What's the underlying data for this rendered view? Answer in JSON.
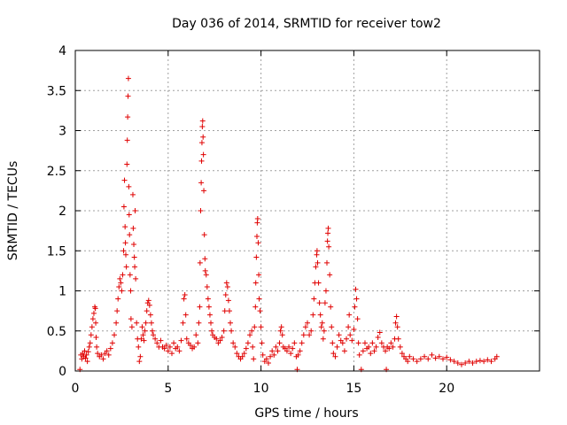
{
  "chart_data": {
    "type": "scatter",
    "title": "Day 036 of 2014, SRMTID for receiver tow2",
    "xlabel": "GPS time / hours",
    "ylabel": "SRMTID / TECUs",
    "xlim": [
      0,
      25
    ],
    "ylim": [
      0,
      4
    ],
    "xticks": [
      0,
      5,
      10,
      15,
      20
    ],
    "xtick_labels": [
      "0",
      "5",
      "10",
      "15",
      "20"
    ],
    "yticks": [
      0,
      0.5,
      1,
      1.5,
      2,
      2.5,
      3,
      3.5,
      4
    ],
    "ytick_labels": [
      "0",
      "0.5",
      "1",
      "1.5",
      "2",
      "2.5",
      "3",
      "3.5",
      "4"
    ],
    "grid": true,
    "marker": "+",
    "color": "#e00000",
    "series": [
      {
        "name": "tow2",
        "points": [
          [
            0.25,
            0.02
          ],
          [
            0.3,
            0.2
          ],
          [
            0.35,
            0.15
          ],
          [
            0.4,
            0.22
          ],
          [
            0.45,
            0.18
          ],
          [
            0.5,
            0.25
          ],
          [
            0.55,
            0.16
          ],
          [
            0.6,
            0.2
          ],
          [
            0.65,
            0.12
          ],
          [
            0.7,
            0.24
          ],
          [
            0.75,
            0.3
          ],
          [
            0.8,
            0.35
          ],
          [
            0.85,
            0.45
          ],
          [
            0.9,
            0.55
          ],
          [
            0.95,
            0.65
          ],
          [
            1.0,
            0.72
          ],
          [
            1.05,
            0.8
          ],
          [
            1.08,
            0.78
          ],
          [
            1.1,
            0.6
          ],
          [
            1.12,
            0.42
          ],
          [
            1.15,
            0.3
          ],
          [
            1.2,
            0.22
          ],
          [
            1.3,
            0.18
          ],
          [
            1.4,
            0.2
          ],
          [
            1.5,
            0.15
          ],
          [
            1.6,
            0.22
          ],
          [
            1.7,
            0.25
          ],
          [
            1.8,
            0.2
          ],
          [
            1.9,
            0.28
          ],
          [
            2.0,
            0.35
          ],
          [
            2.1,
            0.45
          ],
          [
            2.2,
            0.6
          ],
          [
            2.25,
            0.75
          ],
          [
            2.3,
            0.9
          ],
          [
            2.35,
            1.05
          ],
          [
            2.4,
            1.15
          ],
          [
            2.45,
            1.1
          ],
          [
            2.5,
            1.0
          ],
          [
            2.55,
            1.2
          ],
          [
            2.6,
            1.5
          ],
          [
            2.62,
            2.05
          ],
          [
            2.65,
            2.38
          ],
          [
            2.68,
            1.8
          ],
          [
            2.7,
            1.6
          ],
          [
            2.72,
            1.45
          ],
          [
            2.75,
            1.3
          ],
          [
            2.78,
            2.58
          ],
          [
            2.8,
            2.88
          ],
          [
            2.82,
            3.17
          ],
          [
            2.84,
            3.43
          ],
          [
            2.86,
            3.65
          ],
          [
            2.88,
            2.3
          ],
          [
            2.9,
            1.95
          ],
          [
            2.92,
            1.7
          ],
          [
            2.95,
            1.2
          ],
          [
            2.98,
            1.0
          ],
          [
            3.0,
            0.65
          ],
          [
            3.05,
            0.55
          ],
          [
            3.1,
            2.2
          ],
          [
            3.12,
            1.78
          ],
          [
            3.15,
            1.58
          ],
          [
            3.18,
            1.42
          ],
          [
            3.2,
            1.3
          ],
          [
            3.22,
            2.0
          ],
          [
            3.25,
            1.15
          ],
          [
            3.3,
            0.6
          ],
          [
            3.35,
            0.4
          ],
          [
            3.4,
            0.3
          ],
          [
            3.45,
            0.12
          ],
          [
            3.5,
            0.18
          ],
          [
            3.55,
            0.4
          ],
          [
            3.6,
            0.55
          ],
          [
            3.65,
            0.45
          ],
          [
            3.7,
            0.38
          ],
          [
            3.75,
            0.5
          ],
          [
            3.8,
            0.6
          ],
          [
            3.85,
            0.75
          ],
          [
            3.9,
            0.85
          ],
          [
            3.95,
            0.88
          ],
          [
            4.0,
            0.82
          ],
          [
            4.05,
            0.7
          ],
          [
            4.1,
            0.6
          ],
          [
            4.15,
            0.5
          ],
          [
            4.2,
            0.45
          ],
          [
            4.3,
            0.4
          ],
          [
            4.4,
            0.35
          ],
          [
            4.5,
            0.3
          ],
          [
            4.6,
            0.38
          ],
          [
            4.7,
            0.3
          ],
          [
            4.8,
            0.28
          ],
          [
            4.9,
            0.32
          ],
          [
            5.0,
            0.25
          ],
          [
            5.1,
            0.3
          ],
          [
            5.2,
            0.22
          ],
          [
            5.3,
            0.35
          ],
          [
            5.4,
            0.28
          ],
          [
            5.5,
            0.3
          ],
          [
            5.6,
            0.25
          ],
          [
            5.7,
            0.38
          ],
          [
            5.8,
            0.6
          ],
          [
            5.85,
            0.9
          ],
          [
            5.9,
            0.95
          ],
          [
            5.95,
            0.7
          ],
          [
            6.0,
            0.4
          ],
          [
            6.1,
            0.35
          ],
          [
            6.2,
            0.32
          ],
          [
            6.3,
            0.28
          ],
          [
            6.4,
            0.3
          ],
          [
            6.5,
            0.45
          ],
          [
            6.6,
            0.35
          ],
          [
            6.65,
            0.6
          ],
          [
            6.7,
            0.8
          ],
          [
            6.72,
            1.35
          ],
          [
            6.75,
            2.0
          ],
          [
            6.78,
            2.35
          ],
          [
            6.8,
            2.62
          ],
          [
            6.82,
            2.85
          ],
          [
            6.84,
            3.05
          ],
          [
            6.86,
            3.12
          ],
          [
            6.88,
            2.92
          ],
          [
            6.9,
            2.7
          ],
          [
            6.92,
            2.25
          ],
          [
            6.95,
            1.7
          ],
          [
            6.98,
            1.4
          ],
          [
            7.0,
            1.25
          ],
          [
            7.05,
            1.2
          ],
          [
            7.1,
            1.05
          ],
          [
            7.15,
            0.9
          ],
          [
            7.2,
            0.8
          ],
          [
            7.25,
            0.7
          ],
          [
            7.3,
            0.6
          ],
          [
            7.35,
            0.5
          ],
          [
            7.4,
            0.45
          ],
          [
            7.5,
            0.42
          ],
          [
            7.6,
            0.4
          ],
          [
            7.7,
            0.35
          ],
          [
            7.8,
            0.38
          ],
          [
            7.9,
            0.42
          ],
          [
            8.0,
            0.5
          ],
          [
            8.05,
            0.75
          ],
          [
            8.1,
            0.95
          ],
          [
            8.15,
            1.1
          ],
          [
            8.2,
            1.05
          ],
          [
            8.25,
            0.88
          ],
          [
            8.3,
            0.75
          ],
          [
            8.35,
            0.6
          ],
          [
            8.4,
            0.5
          ],
          [
            8.5,
            0.35
          ],
          [
            8.6,
            0.3
          ],
          [
            8.7,
            0.22
          ],
          [
            8.8,
            0.18
          ],
          [
            8.9,
            0.15
          ],
          [
            9.0,
            0.18
          ],
          [
            9.1,
            0.22
          ],
          [
            9.2,
            0.28
          ],
          [
            9.3,
            0.35
          ],
          [
            9.4,
            0.45
          ],
          [
            9.5,
            0.5
          ],
          [
            9.55,
            0.3
          ],
          [
            9.6,
            0.15
          ],
          [
            9.65,
            0.55
          ],
          [
            9.7,
            0.8
          ],
          [
            9.72,
            1.1
          ],
          [
            9.75,
            1.42
          ],
          [
            9.78,
            1.68
          ],
          [
            9.8,
            1.85
          ],
          [
            9.82,
            1.9
          ],
          [
            9.85,
            1.6
          ],
          [
            9.88,
            1.2
          ],
          [
            9.9,
            0.9
          ],
          [
            9.95,
            0.75
          ],
          [
            10.0,
            0.55
          ],
          [
            10.05,
            0.35
          ],
          [
            10.1,
            0.2
          ],
          [
            10.2,
            0.12
          ],
          [
            10.3,
            0.15
          ],
          [
            10.4,
            0.1
          ],
          [
            10.5,
            0.18
          ],
          [
            10.6,
            0.25
          ],
          [
            10.7,
            0.2
          ],
          [
            10.8,
            0.3
          ],
          [
            10.9,
            0.25
          ],
          [
            11.0,
            0.35
          ],
          [
            11.05,
            0.5
          ],
          [
            11.1,
            0.55
          ],
          [
            11.15,
            0.45
          ],
          [
            11.2,
            0.3
          ],
          [
            11.3,
            0.28
          ],
          [
            11.4,
            0.25
          ],
          [
            11.5,
            0.3
          ],
          [
            11.6,
            0.22
          ],
          [
            11.7,
            0.28
          ],
          [
            11.8,
            0.35
          ],
          [
            11.9,
            0.18
          ],
          [
            11.95,
            0.02
          ],
          [
            12.0,
            0.2
          ],
          [
            12.1,
            0.25
          ],
          [
            12.2,
            0.35
          ],
          [
            12.3,
            0.45
          ],
          [
            12.4,
            0.55
          ],
          [
            12.5,
            0.6
          ],
          [
            12.6,
            0.45
          ],
          [
            12.7,
            0.5
          ],
          [
            12.8,
            0.7
          ],
          [
            12.85,
            0.9
          ],
          [
            12.9,
            1.1
          ],
          [
            12.95,
            1.3
          ],
          [
            13.0,
            1.45
          ],
          [
            13.02,
            1.5
          ],
          [
            13.05,
            1.35
          ],
          [
            13.1,
            1.1
          ],
          [
            13.15,
            0.85
          ],
          [
            13.2,
            0.7
          ],
          [
            13.25,
            0.55
          ],
          [
            13.3,
            0.6
          ],
          [
            13.35,
            0.4
          ],
          [
            13.4,
            0.5
          ],
          [
            13.45,
            0.85
          ],
          [
            13.5,
            1.0
          ],
          [
            13.55,
            1.35
          ],
          [
            13.58,
            1.62
          ],
          [
            13.6,
            1.72
          ],
          [
            13.62,
            1.78
          ],
          [
            13.65,
            1.55
          ],
          [
            13.7,
            1.2
          ],
          [
            13.75,
            0.8
          ],
          [
            13.8,
            0.55
          ],
          [
            13.85,
            0.35
          ],
          [
            13.9,
            0.22
          ],
          [
            14.0,
            0.18
          ],
          [
            14.1,
            0.3
          ],
          [
            14.2,
            0.45
          ],
          [
            14.3,
            0.38
          ],
          [
            14.4,
            0.35
          ],
          [
            14.5,
            0.25
          ],
          [
            14.6,
            0.4
          ],
          [
            14.7,
            0.55
          ],
          [
            14.75,
            0.7
          ],
          [
            14.8,
            0.45
          ],
          [
            14.9,
            0.38
          ],
          [
            15.0,
            0.52
          ],
          [
            15.05,
            0.8
          ],
          [
            15.1,
            1.02
          ],
          [
            15.15,
            0.9
          ],
          [
            15.2,
            0.65
          ],
          [
            15.25,
            0.35
          ],
          [
            15.3,
            0.2
          ],
          [
            15.4,
            0.02
          ],
          [
            15.5,
            0.25
          ],
          [
            15.6,
            0.35
          ],
          [
            15.7,
            0.28
          ],
          [
            15.8,
            0.3
          ],
          [
            15.9,
            0.22
          ],
          [
            16.0,
            0.35
          ],
          [
            16.1,
            0.25
          ],
          [
            16.2,
            0.3
          ],
          [
            16.3,
            0.42
          ],
          [
            16.4,
            0.48
          ],
          [
            16.5,
            0.35
          ],
          [
            16.6,
            0.3
          ],
          [
            16.7,
            0.25
          ],
          [
            16.75,
            0.02
          ],
          [
            16.8,
            0.3
          ],
          [
            16.9,
            0.28
          ],
          [
            17.0,
            0.35
          ],
          [
            17.1,
            0.3
          ],
          [
            17.2,
            0.4
          ],
          [
            17.25,
            0.6
          ],
          [
            17.3,
            0.68
          ],
          [
            17.35,
            0.55
          ],
          [
            17.4,
            0.4
          ],
          [
            17.5,
            0.3
          ],
          [
            17.6,
            0.22
          ],
          [
            17.7,
            0.18
          ],
          [
            17.8,
            0.15
          ],
          [
            17.9,
            0.12
          ],
          [
            18.0,
            0.18
          ],
          [
            18.2,
            0.15
          ],
          [
            18.4,
            0.12
          ],
          [
            18.6,
            0.15
          ],
          [
            18.8,
            0.18
          ],
          [
            19.0,
            0.15
          ],
          [
            19.2,
            0.2
          ],
          [
            19.4,
            0.16
          ],
          [
            19.6,
            0.18
          ],
          [
            19.8,
            0.15
          ],
          [
            20.0,
            0.17
          ],
          [
            20.2,
            0.14
          ],
          [
            20.4,
            0.12
          ],
          [
            20.6,
            0.1
          ],
          [
            20.8,
            0.08
          ],
          [
            21.0,
            0.1
          ],
          [
            21.2,
            0.12
          ],
          [
            21.4,
            0.1
          ],
          [
            21.6,
            0.12
          ],
          [
            21.8,
            0.13
          ],
          [
            22.0,
            0.12
          ],
          [
            22.2,
            0.14
          ],
          [
            22.4,
            0.12
          ],
          [
            22.6,
            0.15
          ],
          [
            22.7,
            0.18
          ]
        ]
      }
    ]
  }
}
